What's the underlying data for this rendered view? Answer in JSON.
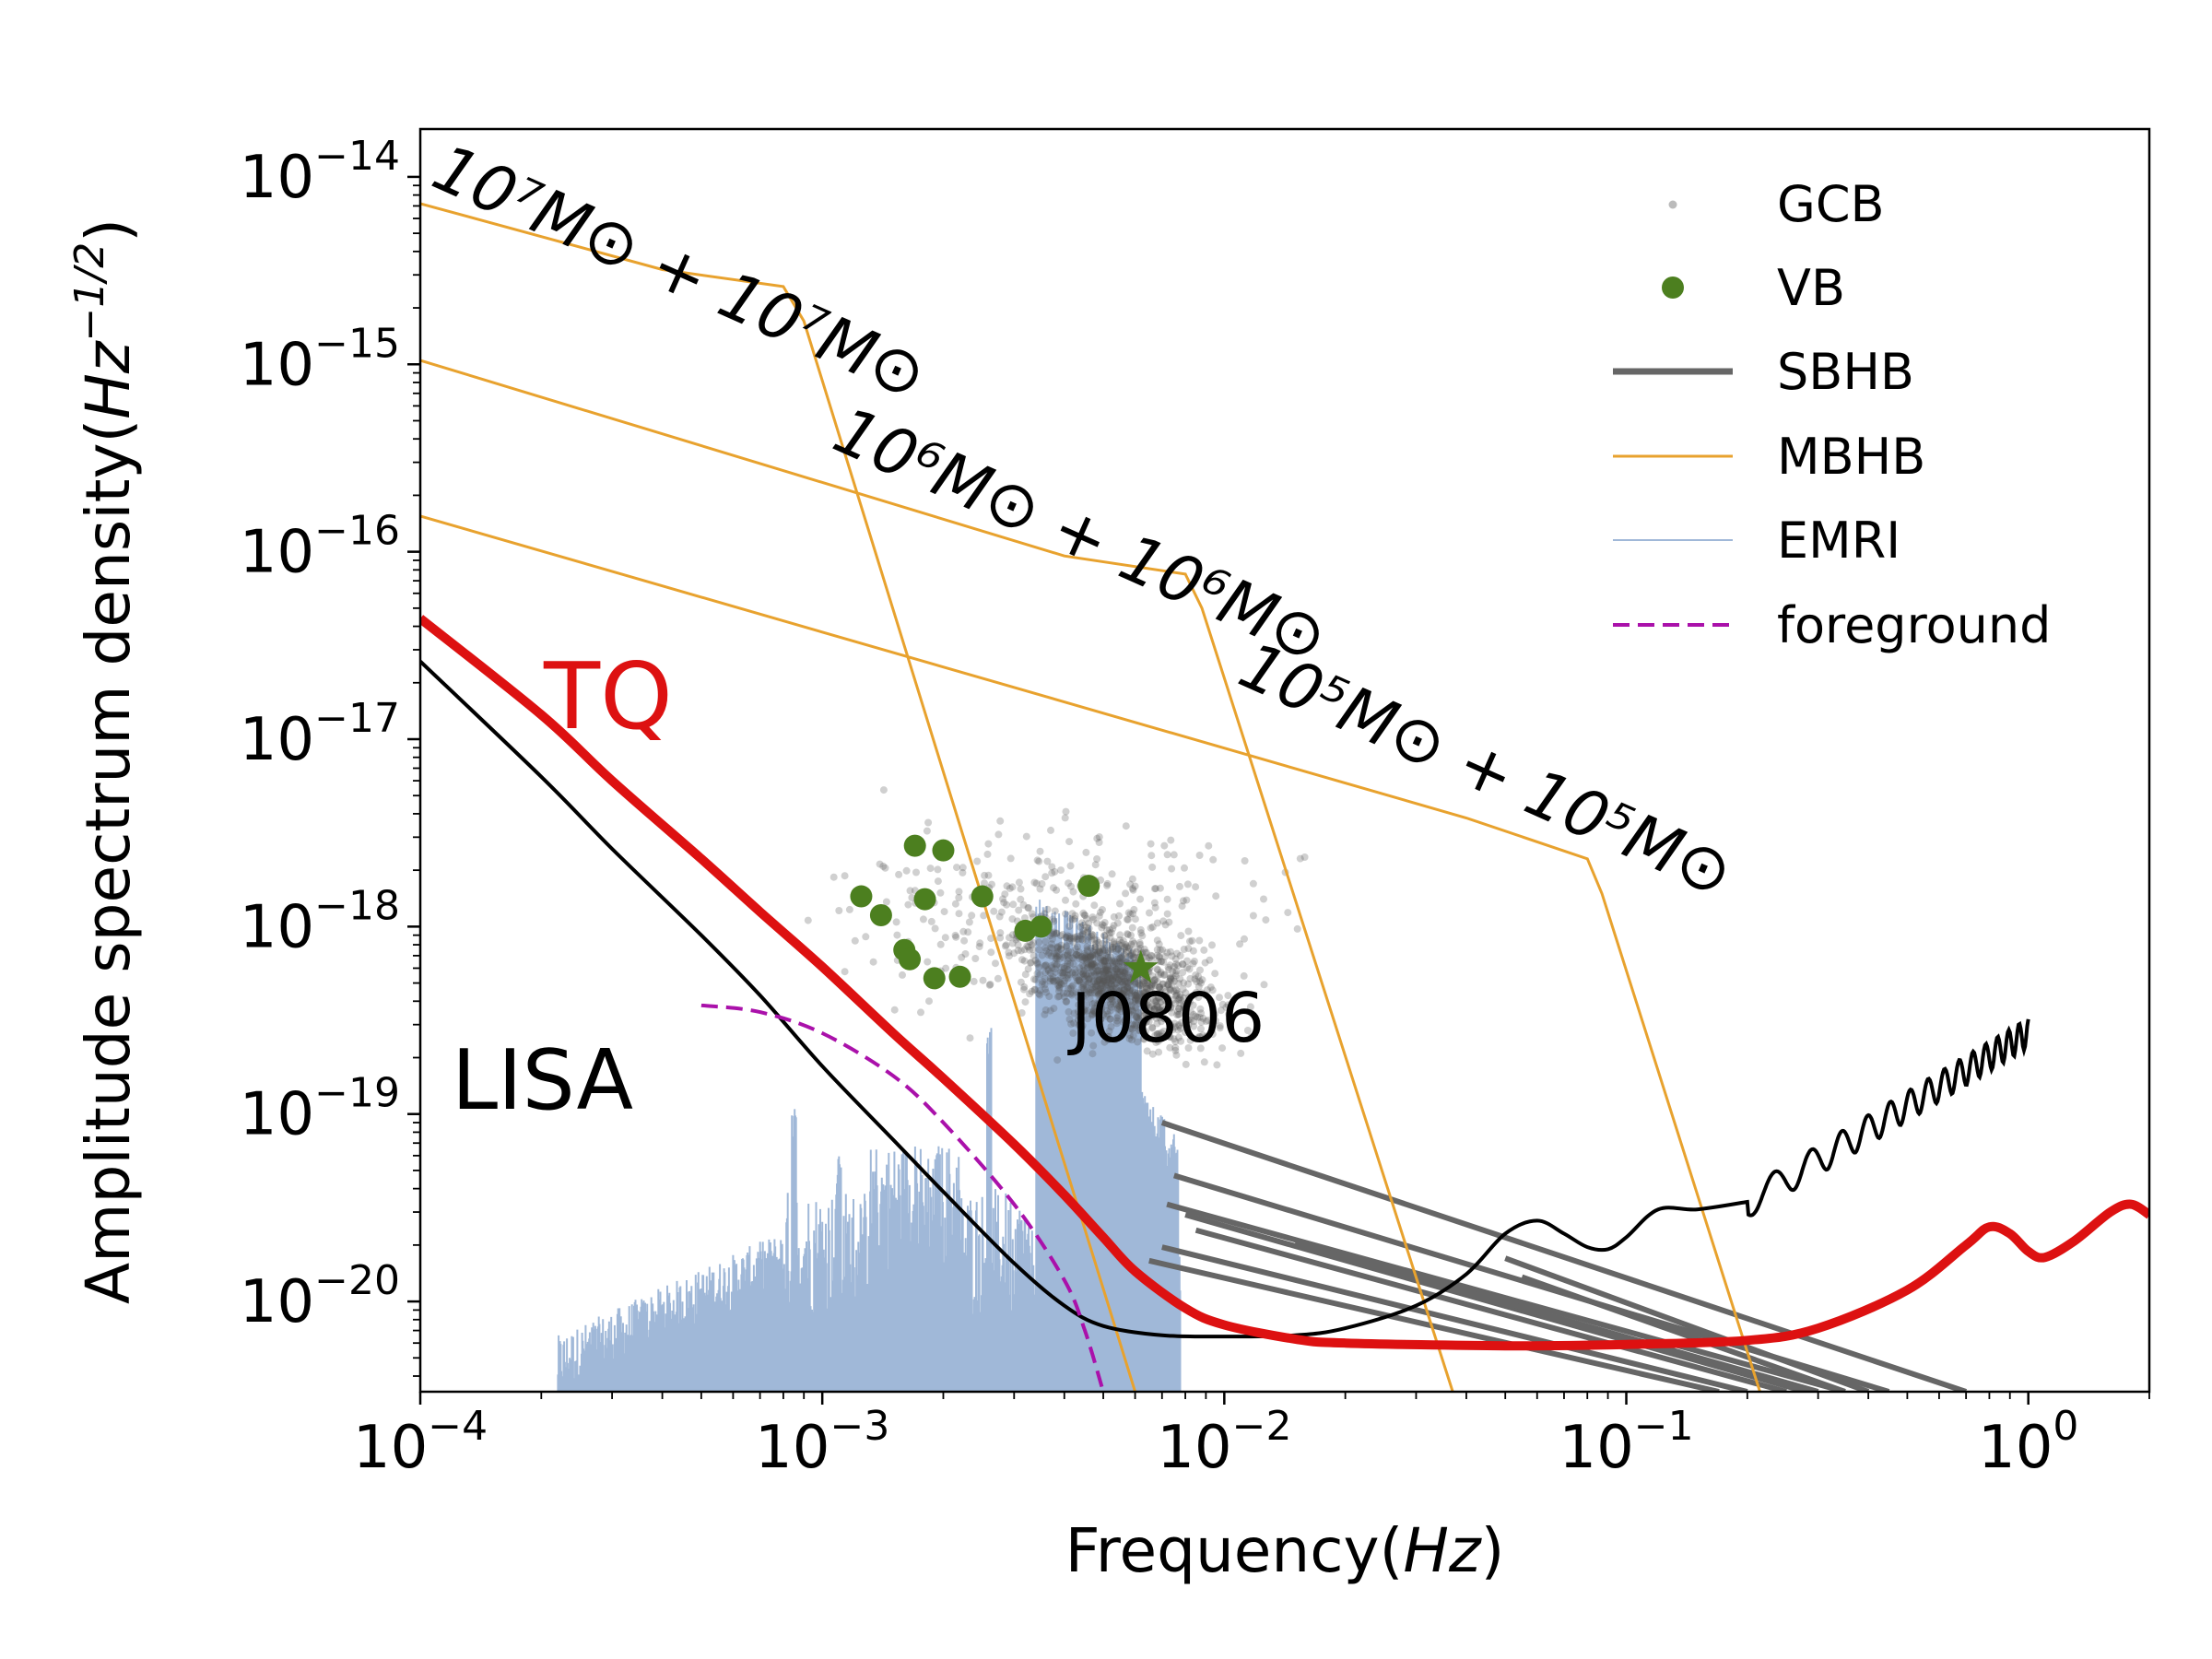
{
  "chart_data": {
    "type": "line",
    "xlabel_prefix": "Frequency(",
    "xlabel_unit": "Hz",
    "xlabel_suffix": ")",
    "ylabel_prefix": "Amplitude spectrum density(",
    "ylabel_unit": "Hz",
    "ylabel_exp": "−1/2",
    "ylabel_suffix": ")",
    "x_scale": "log",
    "y_scale": "log",
    "xlim": [
      0.0001,
      2.0
    ],
    "ylim": [
      3.3e-21,
      1.8e-14
    ],
    "x_ticks": [
      {
        "value": 0.0001,
        "exp": "−4"
      },
      {
        "value": 0.001,
        "exp": "−3"
      },
      {
        "value": 0.01,
        "exp": "−2"
      },
      {
        "value": 0.1,
        "exp": "−1"
      },
      {
        "value": 1.0,
        "exp": "0"
      }
    ],
    "y_ticks": [
      {
        "value": 1e-20,
        "exp": "−20"
      },
      {
        "value": 1e-19,
        "exp": "−19"
      },
      {
        "value": 1e-18,
        "exp": "−18"
      },
      {
        "value": 1e-17,
        "exp": "−17"
      },
      {
        "value": 1e-16,
        "exp": "−16"
      },
      {
        "value": 1e-15,
        "exp": "−15"
      },
      {
        "value": 1e-14,
        "exp": "−14"
      }
    ],
    "tick_base": "10",
    "legend": {
      "position": "top-right",
      "entries": [
        {
          "name": "GCB",
          "kind": "dot",
          "color": "#bbbbbb"
        },
        {
          "name": "VB",
          "kind": "marker",
          "color": "#4c7f1f"
        },
        {
          "name": "SBHB",
          "kind": "thick-line",
          "color": "#666666"
        },
        {
          "name": "MBHB",
          "kind": "line",
          "color": "#e8a22e"
        },
        {
          "name": "EMRI",
          "kind": "thin-line",
          "color": "#a0b8d8"
        },
        {
          "name": "foreground",
          "kind": "dashed",
          "color": "#aa11aa"
        }
      ]
    },
    "colors": {
      "TQ": "#dd1111",
      "LISA": "#000000",
      "MBHB": "#e8a22e",
      "SBHB": "#666666",
      "EMRI": "#a0b8d8",
      "VB": "#4c7f1f",
      "GCB": "#888888",
      "foreground": "#aa11aa"
    },
    "annotations": {
      "TQ": "TQ",
      "LISA": "LISA",
      "J0806": "J0806",
      "mb7": "10⁷M⊙ + 10⁷M⊙",
      "mb6": "10⁶M⊙ + 10⁶M⊙",
      "mb5": "10⁵M⊙ + 10⁵M⊙"
    },
    "series": [
      {
        "id": "TQ",
        "points": [
          [
            0.0001,
            4.4e-17
          ],
          [
            0.0002,
            1.35e-17
          ],
          [
            0.0003,
            6e-18
          ],
          [
            0.0005,
            2.3e-18
          ],
          [
            0.0007,
            1.2e-18
          ],
          [
            0.001,
            6.1e-19
          ],
          [
            0.0015,
            2.7e-19
          ],
          [
            0.002,
            1.55e-19
          ],
          [
            0.003,
            6.9e-20
          ],
          [
            0.004,
            3.7e-20
          ],
          [
            0.005,
            2.2e-20
          ],
          [
            0.006,
            1.45e-20
          ],
          [
            0.008,
            9.2e-21
          ],
          [
            0.01,
            7.5e-21
          ],
          [
            0.015,
            6.3e-21
          ],
          [
            0.02,
            6e-21
          ],
          [
            0.05,
            5.8e-21
          ],
          [
            0.1,
            5.9e-21
          ],
          [
            0.2,
            6.2e-21
          ],
          [
            0.3,
            7.2e-21
          ],
          [
            0.5,
            1.15e-20
          ],
          [
            0.7,
            2e-20
          ],
          [
            0.8,
            2.5e-20
          ],
          [
            0.9,
            2.3e-20
          ],
          [
            1.0,
            1.85e-20
          ],
          [
            1.1,
            1.72e-20
          ],
          [
            1.3,
            2.1e-20
          ],
          [
            1.6,
            3e-20
          ],
          [
            1.8,
            3.3e-20
          ],
          [
            2.0,
            2.9e-20
          ]
        ]
      },
      {
        "id": "LISA",
        "points": [
          [
            0.0001,
            2.6e-17
          ],
          [
            0.0002,
            6.3e-18
          ],
          [
            0.0003,
            2.6e-18
          ],
          [
            0.0005,
            9e-19
          ],
          [
            0.0007,
            4.3e-19
          ],
          [
            0.001,
            1.8e-19
          ],
          [
            0.0015,
            7.3e-20
          ],
          [
            0.002,
            3.85e-20
          ],
          [
            0.003,
            1.6e-20
          ],
          [
            0.004,
            9.5e-21
          ],
          [
            0.005,
            7.4e-21
          ],
          [
            0.007,
            6.6e-21
          ],
          [
            0.01,
            6.5e-21
          ],
          [
            0.015,
            6.6e-21
          ],
          [
            0.02,
            7.2e-21
          ],
          [
            0.03,
            9.5e-21
          ],
          [
            0.04,
            1.4e-20
          ],
          [
            0.05,
            2.3e-20
          ],
          [
            0.06,
            2.7e-20
          ],
          [
            0.07,
            2.3e-20
          ],
          [
            0.08,
            1.95e-20
          ],
          [
            0.09,
            1.9e-20
          ],
          [
            0.1,
            2.2e-20
          ],
          [
            0.12,
            3.1e-20
          ],
          [
            0.15,
            3.1e-20
          ],
          [
            0.2,
            3.4e-20
          ],
          [
            0.3,
            6e-20
          ],
          [
            0.5,
            1.2e-19
          ],
          [
            0.7,
            1.7e-19
          ],
          [
            1.0,
            2.5e-19
          ]
        ]
      },
      {
        "id": "foreground",
        "points": [
          [
            0.0005,
            3.8e-19
          ],
          [
            0.0007,
            3.5e-19
          ],
          [
            0.001,
            2.7e-19
          ],
          [
            0.0015,
            1.6e-19
          ],
          [
            0.002,
            9e-20
          ],
          [
            0.003,
            3.3e-20
          ],
          [
            0.004,
            1.3e-20
          ],
          [
            0.0045,
            7e-21
          ],
          [
            0.005,
            3.3e-21
          ]
        ]
      },
      {
        "id": "MBHB-1e7",
        "points": [
          [
            0.0001,
            7.2e-15
          ],
          [
            0.0004,
            3.2e-15
          ],
          [
            0.0008,
            2.6e-15
          ],
          [
            0.0009,
            1.7e-15
          ],
          [
            0.006,
            3.3e-21
          ]
        ]
      },
      {
        "id": "MBHB-1e6",
        "points": [
          [
            0.0001,
            1.05e-15
          ],
          [
            0.004,
            9.5e-17
          ],
          [
            0.008,
            7.6e-17
          ],
          [
            0.0088,
            5e-17
          ],
          [
            0.037,
            3.3e-21
          ]
        ]
      },
      {
        "id": "MBHB-1e5",
        "points": [
          [
            0.0001,
            1.55e-16
          ],
          [
            0.04,
            3.8e-18
          ],
          [
            0.08,
            2.3e-18
          ],
          [
            0.087,
            1.5e-18
          ],
          [
            0.215,
            3.3e-21
          ]
        ]
      },
      {
        "id": "SBHB",
        "tracks": [
          {
            "from": [
              0.007,
              9e-20
            ],
            "to": [
              0.7,
              3.3e-21
            ]
          },
          {
            "from": [
              0.0075,
              4.7e-20
            ],
            "to": [
              0.45,
              3.3e-21
            ]
          },
          {
            "from": [
              0.0072,
              3.3e-20
            ],
            "to": [
              0.35,
              3.3e-21
            ]
          },
          {
            "from": [
              0.008,
              2.9e-20
            ],
            "to": [
              0.28,
              3.3e-21
            ]
          },
          {
            "from": [
              0.0085,
              2.4e-20
            ],
            "to": [
              0.25,
              3.3e-21
            ]
          },
          {
            "from": [
              0.015,
              2.05e-20
            ],
            "to": [
              0.3,
              3.3e-21
            ]
          },
          {
            "from": [
              0.007,
              1.95e-20
            ],
            "to": [
              0.2,
              3.3e-21
            ]
          },
          {
            "from": [
              0.0065,
              1.65e-20
            ],
            "to": [
              0.17,
              3.3e-21
            ]
          },
          {
            "from": [
              0.05,
              1.7e-20
            ],
            "to": [
              0.4,
              3.3e-21
            ]
          },
          {
            "from": [
              0.055,
              1.35e-20
            ],
            "to": [
              0.35,
              3.3e-21
            ]
          }
        ]
      },
      {
        "id": "VB",
        "points": [
          [
            0.00125,
            1.45e-18
          ],
          [
            0.0014,
            1.15e-18
          ],
          [
            0.0017,
            2.7e-18
          ],
          [
            0.002,
            2.55e-18
          ],
          [
            0.0018,
            1.4e-18
          ],
          [
            0.0025,
            1.45e-18
          ],
          [
            0.0016,
            7.5e-19
          ],
          [
            0.00165,
            6.7e-19
          ],
          [
            0.0019,
            5.3e-19
          ],
          [
            0.0022,
            5.4e-19
          ],
          [
            0.0035,
            1e-18
          ],
          [
            0.0032,
            9.5e-19
          ],
          [
            0.0046,
            1.65e-18
          ]
        ]
      },
      {
        "id": "J0806",
        "points": [
          [
            0.0062,
            6e-19
          ]
        ]
      }
    ]
  }
}
